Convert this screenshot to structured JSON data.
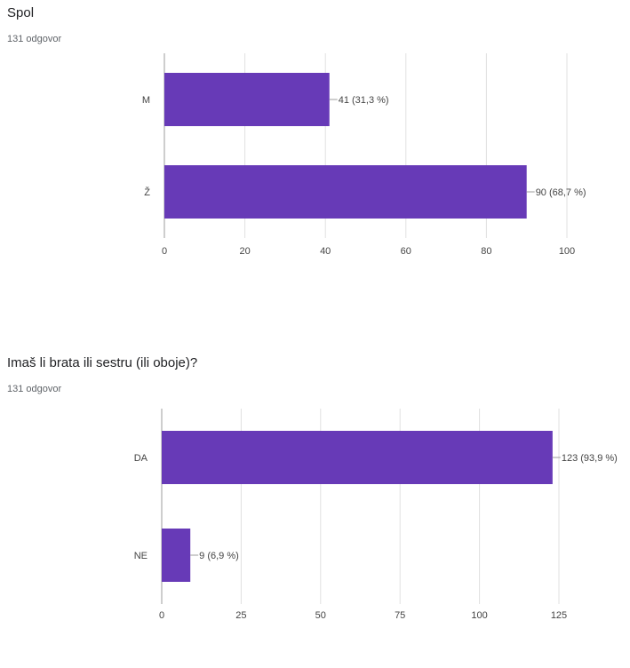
{
  "colors": {
    "bar": "#673ab7",
    "grid": "#e0e0e0",
    "axis": "#9e9e9e",
    "connector": "#9e9e9e"
  },
  "questions": [
    {
      "title": "Spol",
      "responses": "131 odgovor"
    },
    {
      "title": "Imaš li brata ili sestru (ili oboje)?",
      "responses": "131 odgovor"
    }
  ],
  "chart_data": [
    {
      "type": "bar",
      "orientation": "horizontal",
      "categories": [
        "M",
        "Ž"
      ],
      "values": [
        41,
        90
      ],
      "data_labels": [
        "41 (31,3 %)",
        "90 (68,7 %)"
      ],
      "xlim": [
        0,
        100
      ],
      "x_ticks": [
        "0",
        "20",
        "40",
        "60",
        "80",
        "100"
      ],
      "grid": true
    },
    {
      "type": "bar",
      "orientation": "horizontal",
      "categories": [
        "DA",
        "NE"
      ],
      "values": [
        123,
        9
      ],
      "data_labels": [
        "123 (93,9 %)",
        "9 (6,9 %)"
      ],
      "xlim": [
        0,
        125
      ],
      "x_ticks": [
        "0",
        "25",
        "50",
        "75",
        "100",
        "125"
      ],
      "grid": true
    }
  ]
}
